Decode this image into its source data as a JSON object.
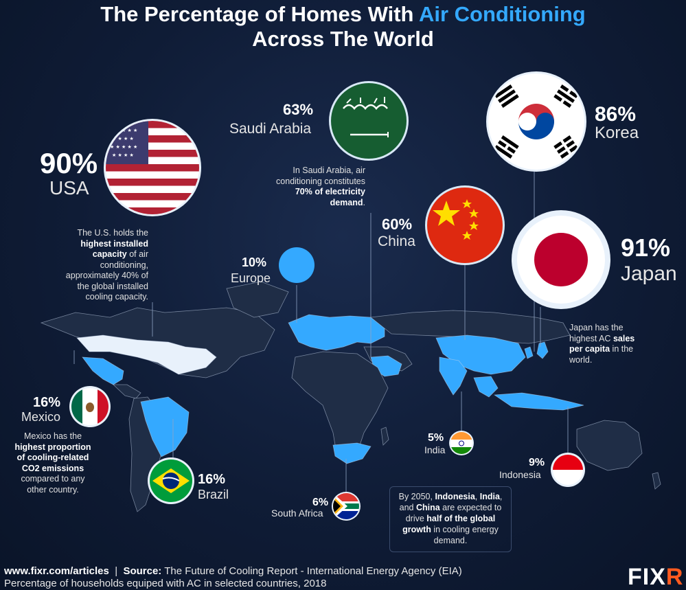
{
  "title": {
    "line1_prefix": "The Percentage of Homes With ",
    "line1_highlight": "Air Conditioning",
    "line2": "Across The World"
  },
  "colors": {
    "background": "#0f1c36",
    "accent": "#34a9ff",
    "land_base": "#1f2d46",
    "land_highlight": "#34a9ff",
    "land_usa": "#e8f1fb",
    "logo_r": "#ff5a1f"
  },
  "chart_data": {
    "type": "map",
    "unit": "%",
    "countries": [
      {
        "name": "USA",
        "value": 90,
        "label": "90%",
        "flag": "usa-flag"
      },
      {
        "name": "Saudi Arabia",
        "value": 63,
        "label": "63%",
        "flag": "saudi-arabia-flag"
      },
      {
        "name": "Korea",
        "value": 86,
        "label": "86%",
        "flag": "korea-flag"
      },
      {
        "name": "China",
        "value": 60,
        "label": "60%",
        "flag": "china-flag"
      },
      {
        "name": "Japan",
        "value": 91,
        "label": "91%",
        "flag": "japan-flag"
      },
      {
        "name": "Europe",
        "value": 10,
        "label": "10%",
        "flag": "europe-dot"
      },
      {
        "name": "Mexico",
        "value": 16,
        "label": "16%",
        "flag": "mexico-flag"
      },
      {
        "name": "Brazil",
        "value": 16,
        "label": "16%",
        "flag": "brazil-flag"
      },
      {
        "name": "India",
        "value": 5,
        "label": "5%",
        "flag": "india-flag"
      },
      {
        "name": "Indonesia",
        "value": 9,
        "label": "9%",
        "flag": "indonesia-flag"
      },
      {
        "name": "South Africa",
        "value": 6,
        "label": "6%",
        "flag": "south-africa-flag"
      }
    ]
  },
  "notes": {
    "usa": {
      "t1": "The U.S. holds the ",
      "b1": "highest installed capacity",
      "t2": " of air conditioning, approximately 40% of the global installed cooling capacity."
    },
    "saudi": {
      "t1": "In Saudi Arabia, air conditioning constitutes ",
      "b1": "70% of electricity demand",
      "t2": "."
    },
    "japan": {
      "t1": "Japan has the highest AC ",
      "b1": "sales per capita",
      "t2": " in the world."
    },
    "mexico": {
      "t1": "Mexico has the ",
      "b1": "highest proportion of cooling-related CO2 emissions",
      "t2": " compared to any other country."
    },
    "growth": {
      "t1": "By 2050, ",
      "b1": "Indonesia",
      "t2": ", ",
      "b2": "India",
      "t3": ", and ",
      "b3": "China",
      "t4": " are expected to drive ",
      "b4": "half of the global growth",
      "t5": " in cooling energy demand."
    }
  },
  "footer": {
    "site": "www.fixr.com/articles",
    "sep": "|",
    "source_label": "Source:",
    "source_text": " The Future of Cooling Report - International Energy Agency (EIA)",
    "line2": "Percentage of households equiped with AC in selected countries, 2018"
  },
  "logo": {
    "main": "FIX",
    "r": "R"
  }
}
